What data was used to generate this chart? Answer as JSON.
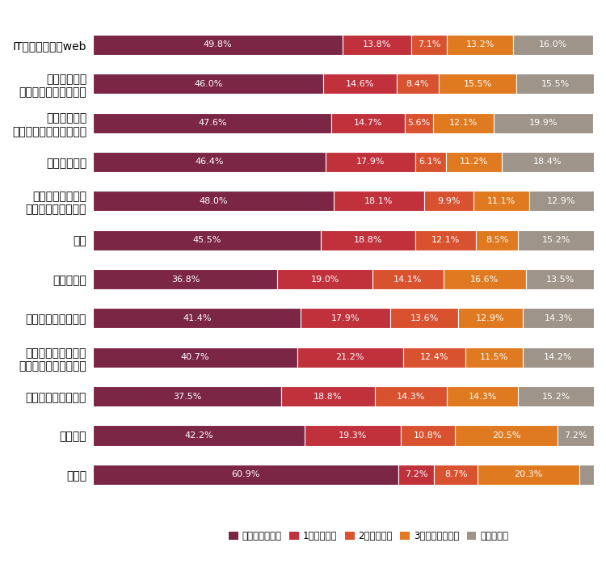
{
  "categories": [
    "IT・運用保守・web",
    "データ入力・\nマニュアル作成・翻訳",
    "事務・総務・\n人事等のバックオフィス",
    "ヘルプデスク",
    "コールセンター・\nテレマーケティング",
    "受付",
    "工場ライン",
    "イベント・店舗運営",
    "教育（学校事務）・\n試験運営・図書館運営",
    "採用代行・就業支援",
    "営業代行",
    "その他"
  ],
  "data": [
    [
      49.8,
      13.8,
      7.1,
      13.2,
      16.0
    ],
    [
      46.0,
      14.6,
      8.4,
      15.5,
      15.5
    ],
    [
      47.6,
      14.7,
      5.6,
      12.1,
      19.9
    ],
    [
      46.4,
      17.9,
      6.1,
      11.2,
      18.4
    ],
    [
      48.0,
      18.1,
      9.9,
      11.1,
      12.9
    ],
    [
      45.5,
      18.8,
      12.1,
      8.5,
      15.2
    ],
    [
      36.8,
      19.0,
      14.1,
      16.6,
      13.5
    ],
    [
      41.4,
      17.9,
      13.6,
      12.9,
      14.3
    ],
    [
      40.7,
      21.2,
      12.4,
      11.5,
      14.2
    ],
    [
      37.5,
      18.8,
      14.3,
      14.3,
      15.2
    ],
    [
      42.2,
      19.3,
      10.8,
      20.5,
      7.2
    ],
    [
      60.9,
      7.2,
      8.7,
      20.3,
      2.9
    ]
  ],
  "colors": [
    "#7b2645",
    "#c0313b",
    "#d95230",
    "#e07a20",
    "#9e948a"
  ],
  "legend_labels": [
    "変更していない",
    "1社変更した",
    "2社変更した",
    "3社以上変更した",
    "わからない"
  ],
  "bar_height": 0.52,
  "figsize": [
    7.5,
    7.24
  ],
  "dpi": 100,
  "background_color": "#ffffff",
  "text_color": "#333333",
  "label_fontsize": 8.0,
  "category_fontsize": 9.0,
  "legend_fontsize": 8.5
}
